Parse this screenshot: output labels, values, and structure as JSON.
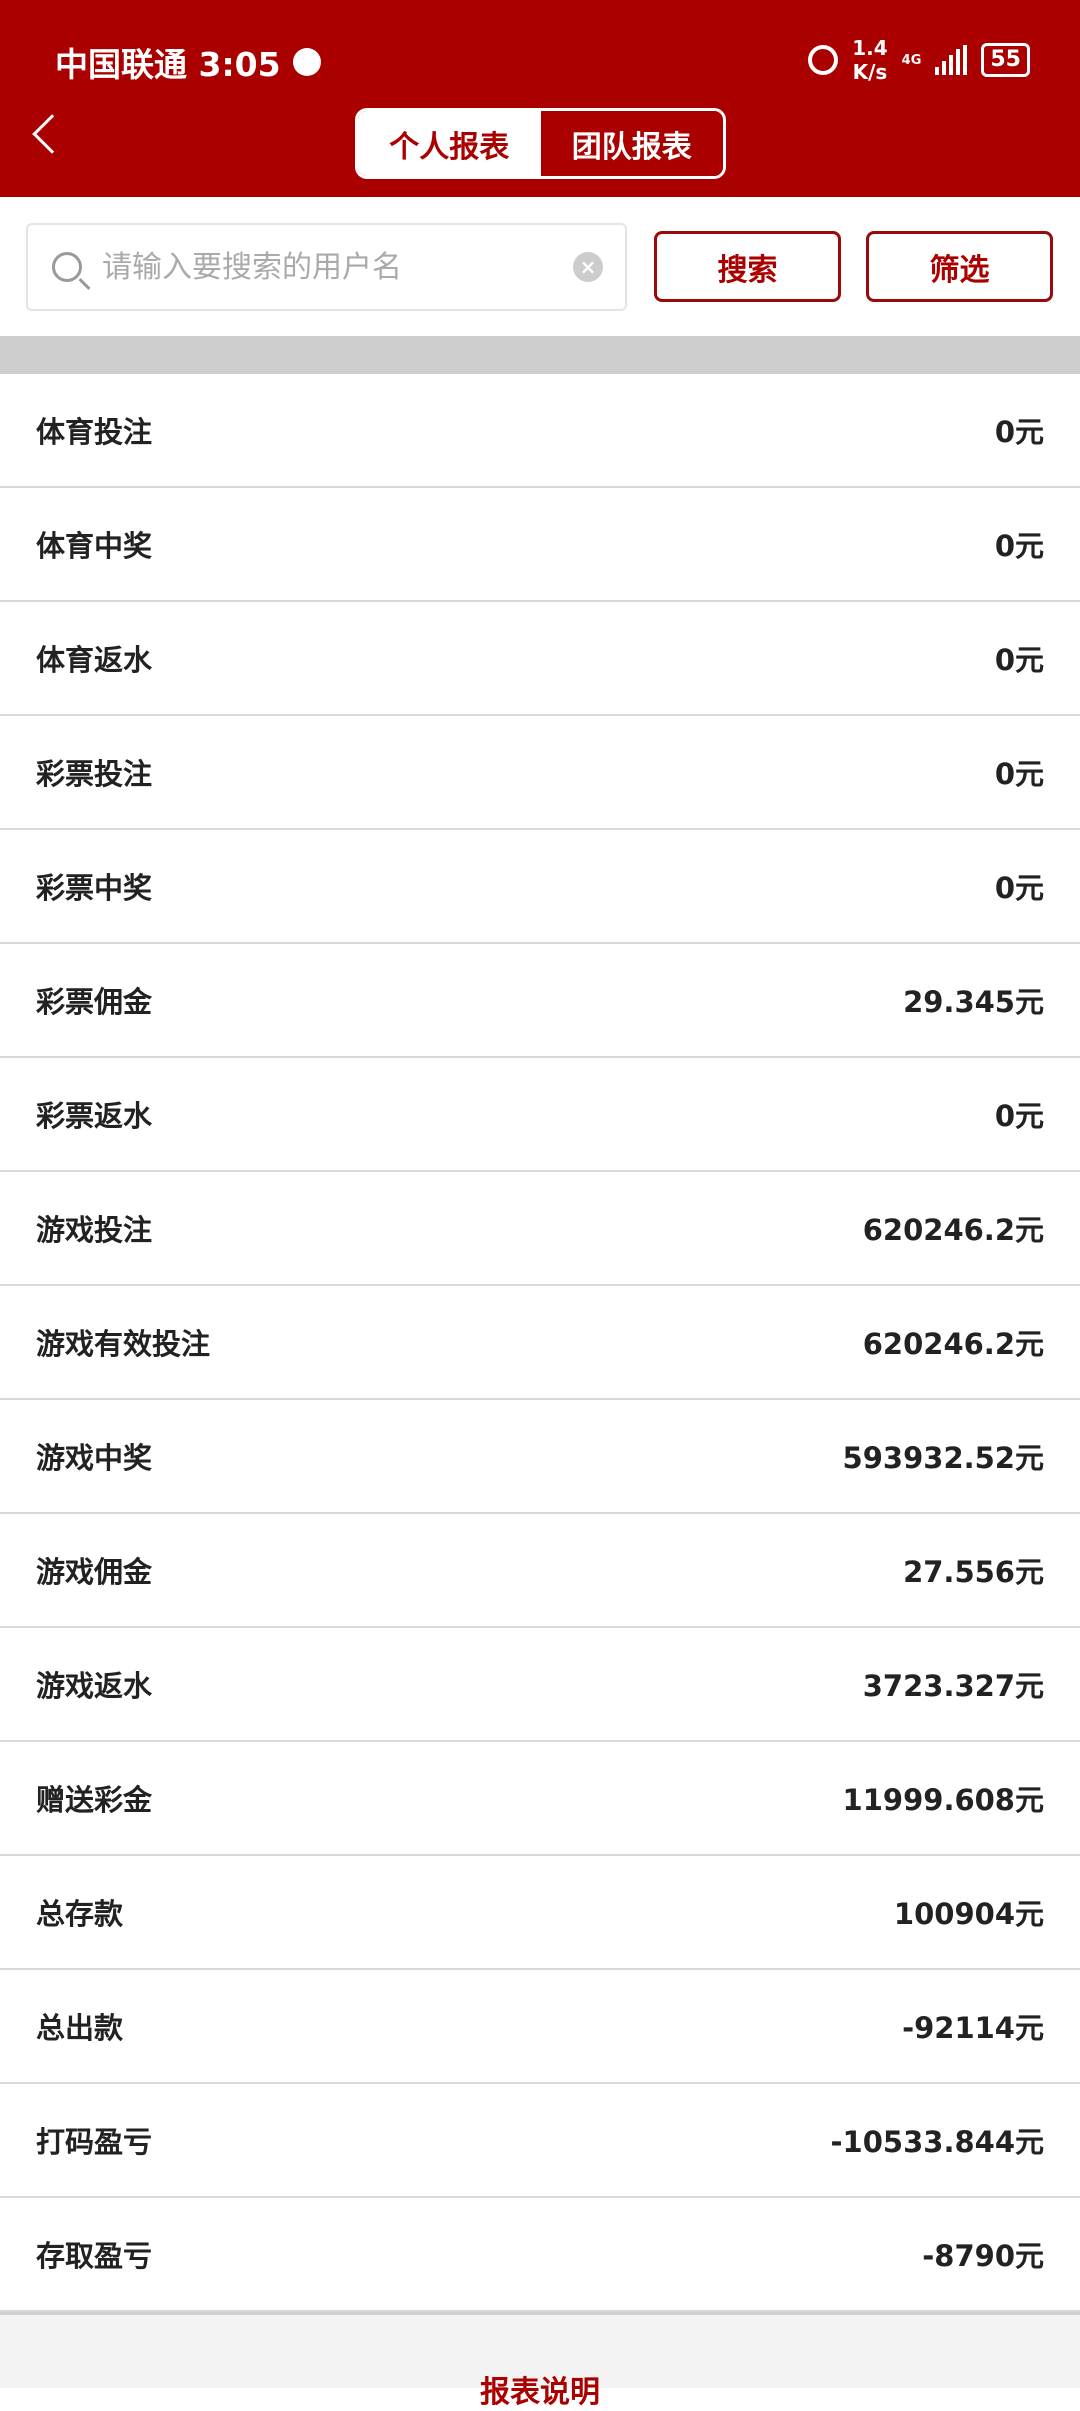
{
  "status_bar": {
    "carrier_time": "中国联通 3:05",
    "speed_value": "1.4",
    "speed_unit": "K/s",
    "network": "4G",
    "battery": "55"
  },
  "header": {
    "tabs": [
      {
        "label": "个人报表",
        "active": true
      },
      {
        "label": "团队报表",
        "active": false
      }
    ],
    "accent": "#ab0000"
  },
  "search": {
    "placeholder": "请输入要搜索的用户名",
    "value": "",
    "search_label": "搜索",
    "filter_label": "筛选"
  },
  "rows": [
    {
      "label": "体育投注",
      "value": "0元"
    },
    {
      "label": "体育中奖",
      "value": "0元"
    },
    {
      "label": "体育返水",
      "value": "0元"
    },
    {
      "label": "彩票投注",
      "value": "0元"
    },
    {
      "label": "彩票中奖",
      "value": "0元"
    },
    {
      "label": "彩票佣金",
      "value": "29.345元"
    },
    {
      "label": "彩票返水",
      "value": "0元"
    },
    {
      "label": "游戏投注",
      "value": "620246.2元"
    },
    {
      "label": "游戏有效投注",
      "value": "620246.2元"
    },
    {
      "label": "游戏中奖",
      "value": "593932.52元"
    },
    {
      "label": "游戏佣金",
      "value": "27.556元"
    },
    {
      "label": "游戏返水",
      "value": "3723.327元"
    },
    {
      "label": "赠送彩金",
      "value": "11999.608元"
    },
    {
      "label": "总存款",
      "value": "100904元"
    },
    {
      "label": "总出款",
      "value": "-92114元"
    },
    {
      "label": "打码盈亏",
      "value": "-10533.844元"
    },
    {
      "label": "存取盈亏",
      "value": "-8790元"
    }
  ],
  "footer": {
    "link": "报表说明"
  }
}
